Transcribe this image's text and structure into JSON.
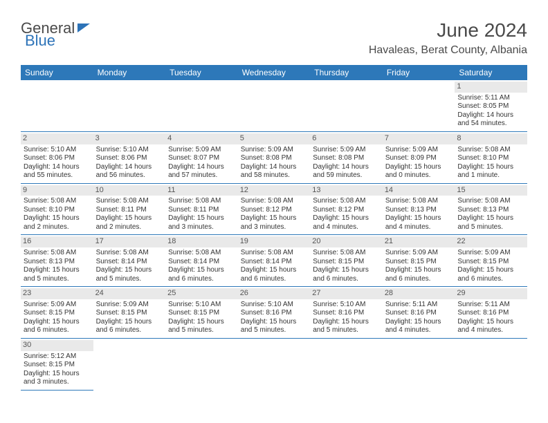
{
  "brand": {
    "part1": "General",
    "part2": "Blue"
  },
  "title": "June 2024",
  "location": "Havaleas, Berat County, Albania",
  "colors": {
    "header_bg": "#2d78b9",
    "header_fg": "#ffffff",
    "daynum_bg": "#e9e9e9",
    "border": "#2d78b9"
  },
  "weekdays": [
    "Sunday",
    "Monday",
    "Tuesday",
    "Wednesday",
    "Thursday",
    "Friday",
    "Saturday"
  ],
  "weeks": [
    [
      {
        "empty": true
      },
      {
        "empty": true
      },
      {
        "empty": true
      },
      {
        "empty": true
      },
      {
        "empty": true
      },
      {
        "empty": true
      },
      {
        "day": "1",
        "sunrise": "Sunrise: 5:11 AM",
        "sunset": "Sunset: 8:05 PM",
        "daylight": "Daylight: 14 hours and 54 minutes."
      }
    ],
    [
      {
        "day": "2",
        "sunrise": "Sunrise: 5:10 AM",
        "sunset": "Sunset: 8:06 PM",
        "daylight": "Daylight: 14 hours and 55 minutes."
      },
      {
        "day": "3",
        "sunrise": "Sunrise: 5:10 AM",
        "sunset": "Sunset: 8:06 PM",
        "daylight": "Daylight: 14 hours and 56 minutes."
      },
      {
        "day": "4",
        "sunrise": "Sunrise: 5:09 AM",
        "sunset": "Sunset: 8:07 PM",
        "daylight": "Daylight: 14 hours and 57 minutes."
      },
      {
        "day": "5",
        "sunrise": "Sunrise: 5:09 AM",
        "sunset": "Sunset: 8:08 PM",
        "daylight": "Daylight: 14 hours and 58 minutes."
      },
      {
        "day": "6",
        "sunrise": "Sunrise: 5:09 AM",
        "sunset": "Sunset: 8:08 PM",
        "daylight": "Daylight: 14 hours and 59 minutes."
      },
      {
        "day": "7",
        "sunrise": "Sunrise: 5:09 AM",
        "sunset": "Sunset: 8:09 PM",
        "daylight": "Daylight: 15 hours and 0 minutes."
      },
      {
        "day": "8",
        "sunrise": "Sunrise: 5:08 AM",
        "sunset": "Sunset: 8:10 PM",
        "daylight": "Daylight: 15 hours and 1 minute."
      }
    ],
    [
      {
        "day": "9",
        "sunrise": "Sunrise: 5:08 AM",
        "sunset": "Sunset: 8:10 PM",
        "daylight": "Daylight: 15 hours and 2 minutes."
      },
      {
        "day": "10",
        "sunrise": "Sunrise: 5:08 AM",
        "sunset": "Sunset: 8:11 PM",
        "daylight": "Daylight: 15 hours and 2 minutes."
      },
      {
        "day": "11",
        "sunrise": "Sunrise: 5:08 AM",
        "sunset": "Sunset: 8:11 PM",
        "daylight": "Daylight: 15 hours and 3 minutes."
      },
      {
        "day": "12",
        "sunrise": "Sunrise: 5:08 AM",
        "sunset": "Sunset: 8:12 PM",
        "daylight": "Daylight: 15 hours and 3 minutes."
      },
      {
        "day": "13",
        "sunrise": "Sunrise: 5:08 AM",
        "sunset": "Sunset: 8:12 PM",
        "daylight": "Daylight: 15 hours and 4 minutes."
      },
      {
        "day": "14",
        "sunrise": "Sunrise: 5:08 AM",
        "sunset": "Sunset: 8:13 PM",
        "daylight": "Daylight: 15 hours and 4 minutes."
      },
      {
        "day": "15",
        "sunrise": "Sunrise: 5:08 AM",
        "sunset": "Sunset: 8:13 PM",
        "daylight": "Daylight: 15 hours and 5 minutes."
      }
    ],
    [
      {
        "day": "16",
        "sunrise": "Sunrise: 5:08 AM",
        "sunset": "Sunset: 8:13 PM",
        "daylight": "Daylight: 15 hours and 5 minutes."
      },
      {
        "day": "17",
        "sunrise": "Sunrise: 5:08 AM",
        "sunset": "Sunset: 8:14 PM",
        "daylight": "Daylight: 15 hours and 5 minutes."
      },
      {
        "day": "18",
        "sunrise": "Sunrise: 5:08 AM",
        "sunset": "Sunset: 8:14 PM",
        "daylight": "Daylight: 15 hours and 6 minutes."
      },
      {
        "day": "19",
        "sunrise": "Sunrise: 5:08 AM",
        "sunset": "Sunset: 8:14 PM",
        "daylight": "Daylight: 15 hours and 6 minutes."
      },
      {
        "day": "20",
        "sunrise": "Sunrise: 5:08 AM",
        "sunset": "Sunset: 8:15 PM",
        "daylight": "Daylight: 15 hours and 6 minutes."
      },
      {
        "day": "21",
        "sunrise": "Sunrise: 5:09 AM",
        "sunset": "Sunset: 8:15 PM",
        "daylight": "Daylight: 15 hours and 6 minutes."
      },
      {
        "day": "22",
        "sunrise": "Sunrise: 5:09 AM",
        "sunset": "Sunset: 8:15 PM",
        "daylight": "Daylight: 15 hours and 6 minutes."
      }
    ],
    [
      {
        "day": "23",
        "sunrise": "Sunrise: 5:09 AM",
        "sunset": "Sunset: 8:15 PM",
        "daylight": "Daylight: 15 hours and 6 minutes."
      },
      {
        "day": "24",
        "sunrise": "Sunrise: 5:09 AM",
        "sunset": "Sunset: 8:15 PM",
        "daylight": "Daylight: 15 hours and 6 minutes."
      },
      {
        "day": "25",
        "sunrise": "Sunrise: 5:10 AM",
        "sunset": "Sunset: 8:15 PM",
        "daylight": "Daylight: 15 hours and 5 minutes."
      },
      {
        "day": "26",
        "sunrise": "Sunrise: 5:10 AM",
        "sunset": "Sunset: 8:16 PM",
        "daylight": "Daylight: 15 hours and 5 minutes."
      },
      {
        "day": "27",
        "sunrise": "Sunrise: 5:10 AM",
        "sunset": "Sunset: 8:16 PM",
        "daylight": "Daylight: 15 hours and 5 minutes."
      },
      {
        "day": "28",
        "sunrise": "Sunrise: 5:11 AM",
        "sunset": "Sunset: 8:16 PM",
        "daylight": "Daylight: 15 hours and 4 minutes."
      },
      {
        "day": "29",
        "sunrise": "Sunrise: 5:11 AM",
        "sunset": "Sunset: 8:16 PM",
        "daylight": "Daylight: 15 hours and 4 minutes."
      }
    ],
    [
      {
        "day": "30",
        "sunrise": "Sunrise: 5:12 AM",
        "sunset": "Sunset: 8:15 PM",
        "daylight": "Daylight: 15 hours and 3 minutes."
      },
      {
        "empty": true
      },
      {
        "empty": true
      },
      {
        "empty": true
      },
      {
        "empty": true
      },
      {
        "empty": true
      },
      {
        "empty": true
      }
    ]
  ]
}
